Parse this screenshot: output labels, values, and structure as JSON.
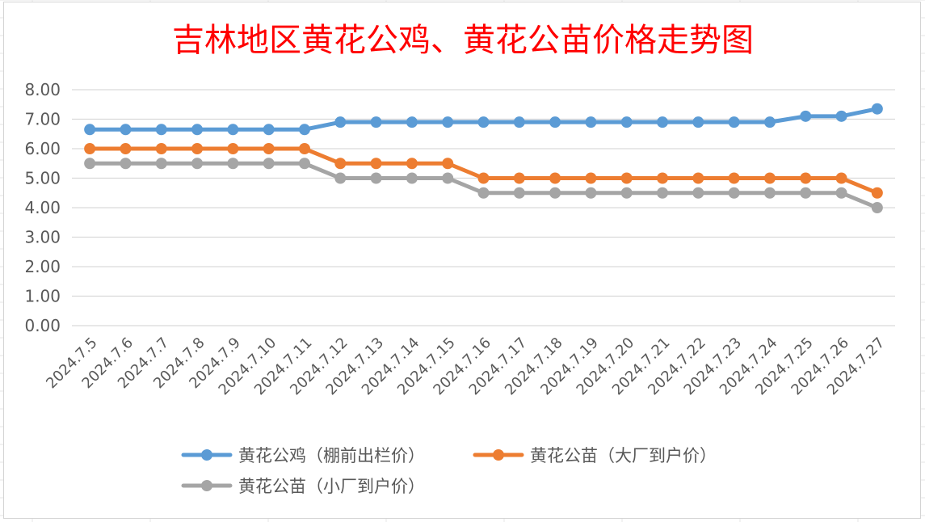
{
  "chart_data": {
    "type": "line",
    "title": "吉林地区黄花公鸡、黄花公苗价格走势图",
    "xlabel": "",
    "ylabel": "",
    "ylim": [
      0,
      8
    ],
    "yticks": [
      "8.00",
      "7.00",
      "6.00",
      "5.00",
      "4.00",
      "3.00",
      "2.00",
      "1.00",
      "0.00"
    ],
    "grid": true,
    "legend_position": "bottom",
    "categories": [
      "2024.7.5",
      "2024.7.6",
      "2024.7.7",
      "2024.7.8",
      "2024.7.9",
      "2024.7.10",
      "2024.7.11",
      "2024.7.12",
      "2024.7.13",
      "2024.7.14",
      "2024.7.15",
      "2024.7.16",
      "2024.7.17",
      "2024.7.18",
      "2024.7.19",
      "2024.7.20",
      "2024.7.21",
      "2024.7.22",
      "2024.7.23",
      "2024.7.24",
      "2024.7.25",
      "2024.7.26",
      "2024.7.27"
    ],
    "series": [
      {
        "name": "黄花公鸡（棚前出栏价）",
        "color": "#5b9bd5",
        "values": [
          6.65,
          6.65,
          6.65,
          6.65,
          6.65,
          6.65,
          6.65,
          6.9,
          6.9,
          6.9,
          6.9,
          6.9,
          6.9,
          6.9,
          6.9,
          6.9,
          6.9,
          6.9,
          6.9,
          6.9,
          7.1,
          7.1,
          7.35
        ]
      },
      {
        "name": "黄花公苗（大厂到户价）",
        "color": "#ed7d31",
        "values": [
          6.0,
          6.0,
          6.0,
          6.0,
          6.0,
          6.0,
          6.0,
          5.5,
          5.5,
          5.5,
          5.5,
          5.0,
          5.0,
          5.0,
          5.0,
          5.0,
          5.0,
          5.0,
          5.0,
          5.0,
          5.0,
          5.0,
          4.5
        ]
      },
      {
        "name": "黄花公苗（小厂到户价）",
        "color": "#a5a5a5",
        "values": [
          5.5,
          5.5,
          5.5,
          5.5,
          5.5,
          5.5,
          5.5,
          5.0,
          5.0,
          5.0,
          5.0,
          4.5,
          4.5,
          4.5,
          4.5,
          4.5,
          4.5,
          4.5,
          4.5,
          4.5,
          4.5,
          4.5,
          4.0
        ]
      }
    ]
  },
  "colors": {
    "title": "#ff0000",
    "gridline": "#d9d9d9",
    "tick_text": "#595959"
  }
}
